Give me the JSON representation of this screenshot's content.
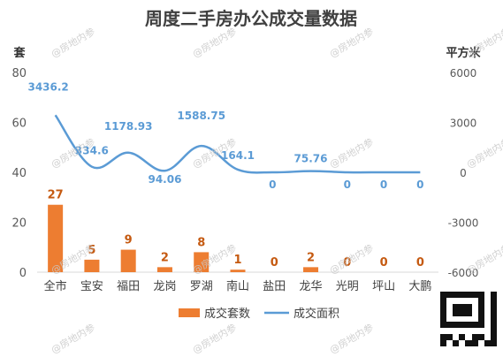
{
  "chart_data": {
    "type": "bar+line",
    "title": "周度二手房办公成交量数据",
    "left_axis_unit": "套",
    "right_axis_unit": "平方米",
    "categories": [
      "全市",
      "宝安",
      "福田",
      "龙岗",
      "罗湖",
      "南山",
      "盐田",
      "龙华",
      "光明",
      "坪山",
      "大鹏"
    ],
    "series": [
      {
        "name": "成交套数",
        "type": "bar",
        "axis": "left",
        "values": [
          27,
          5,
          9,
          2,
          8,
          1,
          0,
          2,
          0,
          0,
          0
        ],
        "labels": [
          "27",
          "5",
          "9",
          "2",
          "8",
          "1",
          "0",
          "2",
          "0",
          "0",
          "0"
        ]
      },
      {
        "name": "成交面积",
        "type": "line",
        "axis": "right",
        "values": [
          3436.2,
          334.6,
          1178.93,
          94.06,
          1588.75,
          164.1,
          0,
          75.76,
          0,
          0,
          0
        ],
        "labels": [
          "3436.2",
          "334.6",
          "1178.93",
          "94.06",
          "1588.75",
          "164.1",
          "0",
          "75.76",
          "0",
          "0",
          "0"
        ]
      }
    ],
    "left_ylim": [
      0,
      80
    ],
    "left_ticks": [
      "0",
      "20",
      "40",
      "60",
      "80"
    ],
    "right_ylim": [
      -6000,
      6000
    ],
    "right_ticks": [
      "-6000",
      "-3000",
      "0",
      "3000",
      "6000"
    ],
    "legend_position": "bottom",
    "grid": false
  },
  "colors": {
    "bar": "#ED7D31",
    "line": "#5B9BD5",
    "title": "#404040",
    "axis_text": "#595959"
  },
  "watermark": "@房地内参"
}
